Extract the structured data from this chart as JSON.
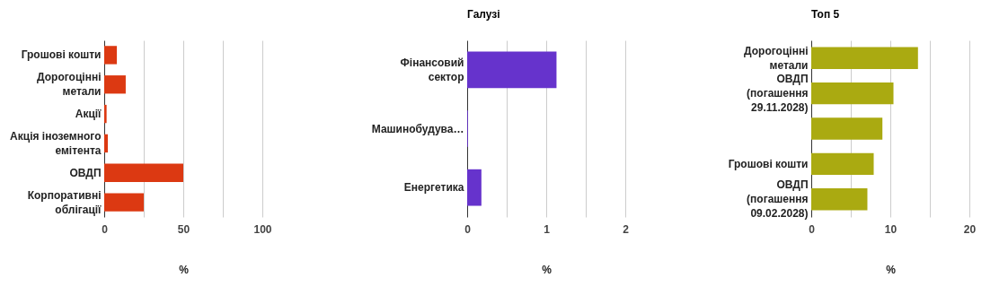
{
  "chart_data": [
    {
      "type": "bar",
      "orientation": "horizontal",
      "categories": [
        "Грошові кошти",
        "Дорогоцінні метали",
        "Акції",
        "Акція іноземного емітента",
        "ОВДП",
        "Корпоративні облігації"
      ],
      "values": [
        8,
        13.6,
        1.5,
        2.3,
        50,
        25
      ],
      "color": "#dc3912",
      "xlabel": "%",
      "xlim": [
        0,
        100
      ],
      "xticks": [
        0,
        {
          "value": 25,
          "label": null
        },
        50,
        {
          "value": 75,
          "label": null
        },
        100
      ],
      "grid": "x"
    },
    {
      "type": "bar",
      "orientation": "horizontal",
      "title": "Галузі",
      "categories": [
        "Фінансовий сектор",
        "Машинобудува…",
        "Енергетика"
      ],
      "values": [
        1.13,
        0.01,
        0.18
      ],
      "color": "#6633cc",
      "xlabel": "%",
      "xlim": [
        0,
        2
      ],
      "xticks": [
        0,
        {
          "value": 0.5,
          "label": null
        },
        1,
        {
          "value": 1.5,
          "label": null
        },
        2
      ],
      "grid": "x"
    },
    {
      "type": "bar",
      "orientation": "horizontal",
      "title": "Топ 5",
      "categories": [
        "Дорогоцінні метали",
        "ОВДП (погашення 29.11.2028)",
        null,
        "Грошові кошти",
        "ОВДП (погашення 09.02.2028)"
      ],
      "values": [
        13.5,
        10.4,
        9,
        7.9,
        7.1
      ],
      "color": "#aaaa11",
      "xlabel": "%",
      "xlim": [
        0,
        20
      ],
      "xticks": [
        0,
        {
          "value": 5,
          "label": null
        },
        10,
        {
          "value": 15,
          "label": null
        },
        20
      ],
      "grid": "x"
    }
  ]
}
